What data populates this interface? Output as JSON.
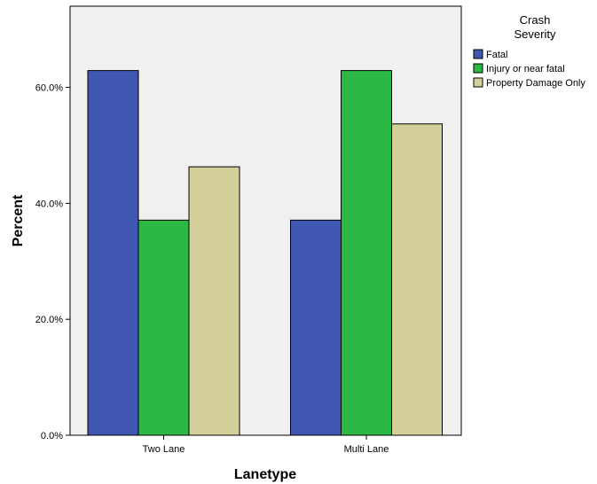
{
  "chart_data": {
    "type": "bar",
    "categories": [
      "Two Lane",
      "Multi Lane"
    ],
    "series": [
      {
        "name": "Fatal",
        "values": [
          62.9,
          37.1
        ],
        "color": "#3f57b0"
      },
      {
        "name": "Injury or near fatal",
        "values": [
          37.1,
          62.9
        ],
        "color": "#2bb844"
      },
      {
        "name": "Property Damage Only",
        "values": [
          46.3,
          53.7
        ],
        "color": "#d4d09c"
      }
    ],
    "xlabel": "Lanetype",
    "ylabel": "Percent",
    "ylim": [
      0,
      74
    ],
    "yticks": [
      0,
      20,
      40,
      60
    ],
    "ytick_labels": [
      "0.0%",
      "20.0%",
      "40.0%",
      "60.0%"
    ],
    "legend": {
      "title_line1": "Crash",
      "title_line2": "Severity",
      "placement": "right"
    },
    "plot_background": "#f0f0f0",
    "grid": false
  }
}
